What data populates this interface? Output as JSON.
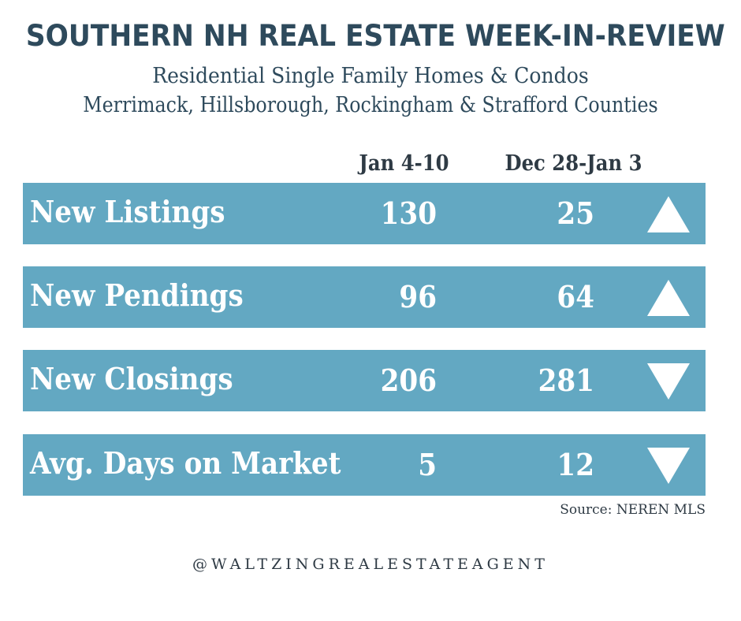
{
  "header": {
    "title": "Southern NH Real Estate Week-in-Review",
    "subtitle_line1": "Residential Single Family Homes & Condos",
    "subtitle_line2": "Merrimack, Hillsborough, Rockingham & Strafford Counties"
  },
  "columns": {
    "current": "Jan 4-10",
    "previous": "Dec 28-Jan 3"
  },
  "rows": [
    {
      "label": "New Listings",
      "current": "130",
      "previous": "25",
      "trend": "up",
      "trend_icon": "triangle-up-icon"
    },
    {
      "label": "New Pendings",
      "current": "96",
      "previous": "64",
      "trend": "up",
      "trend_icon": "triangle-up-icon"
    },
    {
      "label": "New Closings",
      "current": "206",
      "previous": "281",
      "trend": "down",
      "trend_icon": "triangle-down-icon"
    },
    {
      "label": "Avg. Days on Market",
      "current": "5",
      "previous": "12",
      "trend": "down",
      "trend_icon": "triangle-down-icon"
    }
  ],
  "footer": {
    "source": "Source: NEREN MLS",
    "handle": "@WALTZINGREALESTATEAGENT"
  },
  "colors": {
    "title": "#2e4a5c",
    "row_background": "#63a8c2",
    "row_text": "#ffffff"
  }
}
